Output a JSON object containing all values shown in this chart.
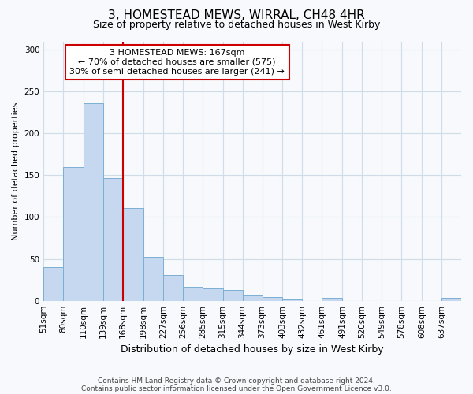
{
  "title": "3, HOMESTEAD MEWS, WIRRAL, CH48 4HR",
  "subtitle": "Size of property relative to detached houses in West Kirby",
  "xlabel": "Distribution of detached houses by size in West Kirby",
  "ylabel": "Number of detached properties",
  "footnote1": "Contains HM Land Registry data © Crown copyright and database right 2024.",
  "footnote2": "Contains public sector information licensed under the Open Government Licence v3.0.",
  "categories": [
    "51sqm",
    "80sqm",
    "110sqm",
    "139sqm",
    "168sqm",
    "198sqm",
    "227sqm",
    "256sqm",
    "285sqm",
    "315sqm",
    "344sqm",
    "373sqm",
    "403sqm",
    "432sqm",
    "461sqm",
    "491sqm",
    "520sqm",
    "549sqm",
    "578sqm",
    "608sqm",
    "637sqm"
  ],
  "values": [
    40,
    160,
    236,
    147,
    111,
    52,
    31,
    17,
    15,
    13,
    7,
    4,
    2,
    0,
    3,
    0,
    0,
    0,
    0,
    0,
    3
  ],
  "bar_color": "#c5d8f0",
  "bar_edge_color": "#7bafd4",
  "bin_edges": [
    51,
    80,
    110,
    139,
    168,
    198,
    227,
    256,
    285,
    315,
    344,
    373,
    403,
    432,
    461,
    491,
    520,
    549,
    578,
    608,
    637,
    666
  ],
  "annotation_text_line1": "3 HOMESTEAD MEWS: 167sqm",
  "annotation_text_line2": "← 70% of detached houses are smaller (575)",
  "annotation_text_line3": "30% of semi-detached houses are larger (241) →",
  "annotation_box_facecolor": "#ffffff",
  "annotation_box_edgecolor": "#cc0000",
  "vline_color": "#cc0000",
  "background_color": "#f7f9fc",
  "grid_color": "#d0dce8",
  "ylim": [
    0,
    310
  ],
  "yticks": [
    0,
    50,
    100,
    150,
    200,
    250,
    300
  ],
  "title_fontsize": 11,
  "subtitle_fontsize": 9,
  "ylabel_fontsize": 8,
  "xlabel_fontsize": 9,
  "tick_fontsize": 7.5,
  "footnote_fontsize": 6.5,
  "annot_fontsize": 8
}
